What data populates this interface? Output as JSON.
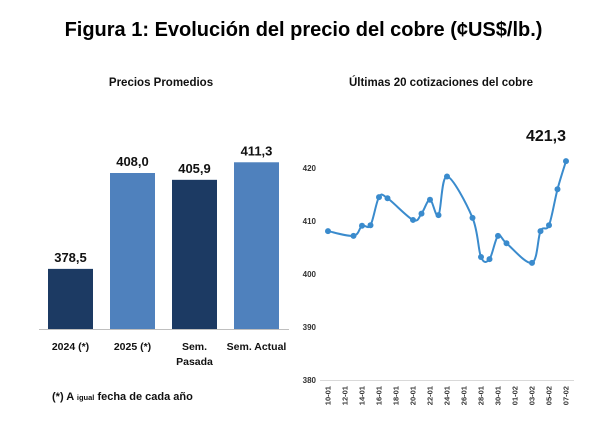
{
  "title": "Figura 1: Evolución del precio del cobre (¢US$/lb.)",
  "chart_data": [
    {
      "type": "bar",
      "title": "Precios Promedios",
      "categories": [
        "2024 (*)",
        "2025 (*)",
        "Sem. Pasada",
        "Sem. Actual"
      ],
      "values": [
        378.5,
        408.0,
        405.9,
        411.3
      ],
      "value_labels": [
        "378,5",
        "408,0",
        "405,9",
        "411,3"
      ],
      "bar_colors": [
        "#1c3a63",
        "#4f81bd",
        "#1c3a63",
        "#4f81bd"
      ],
      "ylim": [
        360,
        430
      ],
      "grid": false,
      "footnote": {
        "prefix": "(*) A",
        "small": "igual",
        "suffix": "fecha de cada año"
      }
    },
    {
      "type": "line",
      "title": "Últimas 20 cotizaciones del cobre",
      "x": [
        "10-01",
        "13-01",
        "14-01",
        "15-01",
        "16-01",
        "17-01",
        "20-01",
        "21-01",
        "22-01",
        "23-01",
        "24-01",
        "27-01",
        "28-01",
        "29-01",
        "30-01",
        "31-01",
        "03-02",
        "04-02",
        "05-02",
        "06-02",
        "07-02"
      ],
      "series": [
        {
          "values": [
            408.1,
            407.2,
            409.1,
            409.2,
            414.5,
            414.3,
            410.2,
            411.4,
            414.0,
            411.1,
            418.4,
            410.6,
            403.2,
            402.8,
            407.2,
            405.8,
            402.1,
            408.1,
            409.2,
            416.0,
            421.3
          ]
        }
      ],
      "x_ticks": [
        "10-01",
        "12-01",
        "14-01",
        "16-01",
        "18-01",
        "20-01",
        "22-01",
        "24-01",
        "26-01",
        "28-01",
        "30-01",
        "01-02",
        "03-02",
        "05-02",
        "07-02"
      ],
      "y_ticks": [
        420,
        410,
        400,
        390,
        380
      ],
      "ylim": [
        380,
        420
      ],
      "annotations": [
        {
          "x": "07-02",
          "y": 421.3,
          "text": "421,3"
        }
      ],
      "line_color": "#3a8bcd",
      "marker": "circle",
      "smooth": true,
      "grid": false
    }
  ]
}
